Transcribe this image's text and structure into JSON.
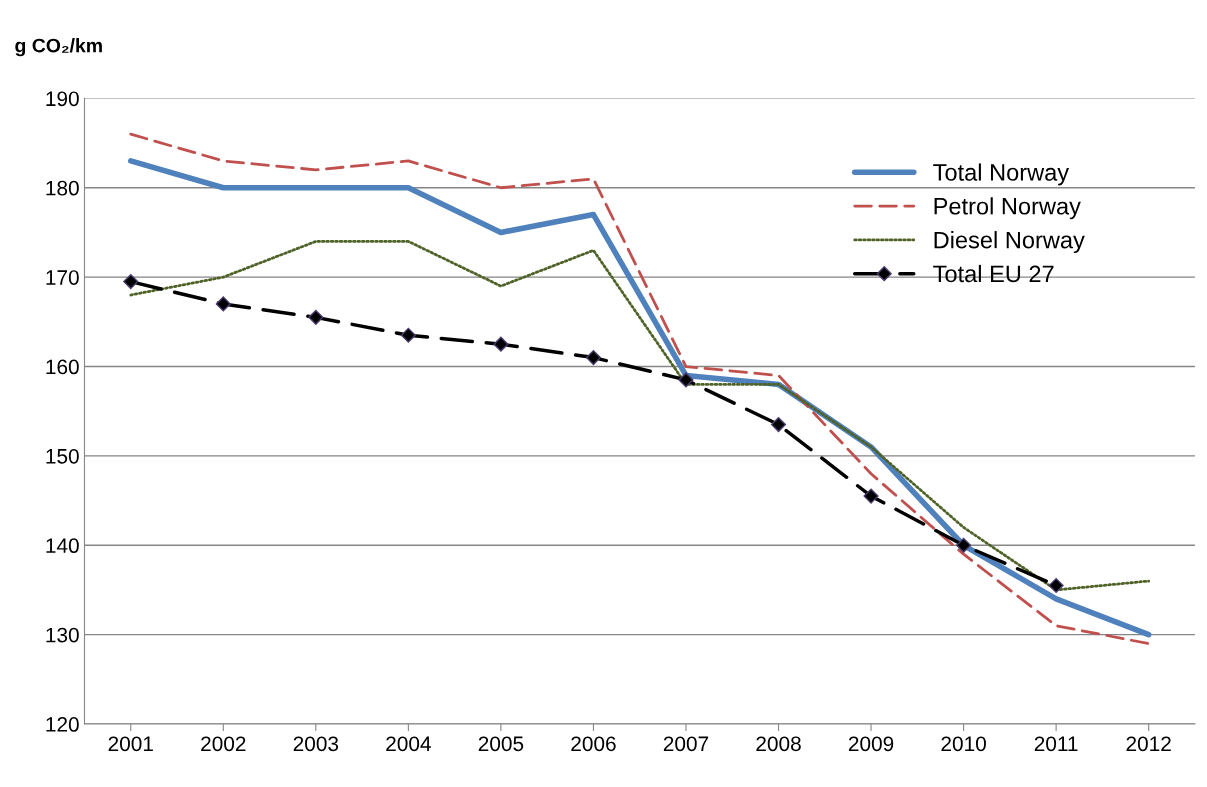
{
  "chart_data": {
    "type": "line",
    "ylabel": "g CO₂/km",
    "categories": [
      "2001",
      "2002",
      "2003",
      "2004",
      "2005",
      "2006",
      "2007",
      "2008",
      "2009",
      "2010",
      "2011",
      "2012"
    ],
    "series": [
      {
        "name": "Total Norway",
        "color": "#4f81bd",
        "line_style": "solid",
        "marker": "none",
        "values": [
          183,
          180,
          180,
          180,
          175,
          177,
          159,
          158,
          151,
          140,
          134,
          130
        ]
      },
      {
        "name": "Petrol Norway",
        "color": "#c0504d",
        "line_style": "dashed",
        "marker": "none",
        "values": [
          186,
          183,
          182,
          183,
          180,
          181,
          160,
          159,
          148,
          139,
          131,
          129
        ]
      },
      {
        "name": "Diesel Norway",
        "color": "#4f6228",
        "line_style": "dotted",
        "marker": "none",
        "values": [
          168,
          170,
          174,
          174,
          169,
          173,
          158,
          158,
          151,
          142,
          135,
          136
        ]
      },
      {
        "name": "Total EU 27",
        "color": "#000000",
        "line_style": "dashed",
        "marker": "diamond",
        "values": [
          169.5,
          167,
          165.5,
          163.5,
          162.5,
          161,
          158.5,
          153.5,
          145.5,
          140,
          135.5,
          null
        ]
      }
    ],
    "ylim": [
      120,
      190
    ],
    "yticks": [
      120,
      130,
      140,
      150,
      160,
      170,
      180,
      190
    ],
    "grid": "y",
    "legend": "top right"
  }
}
